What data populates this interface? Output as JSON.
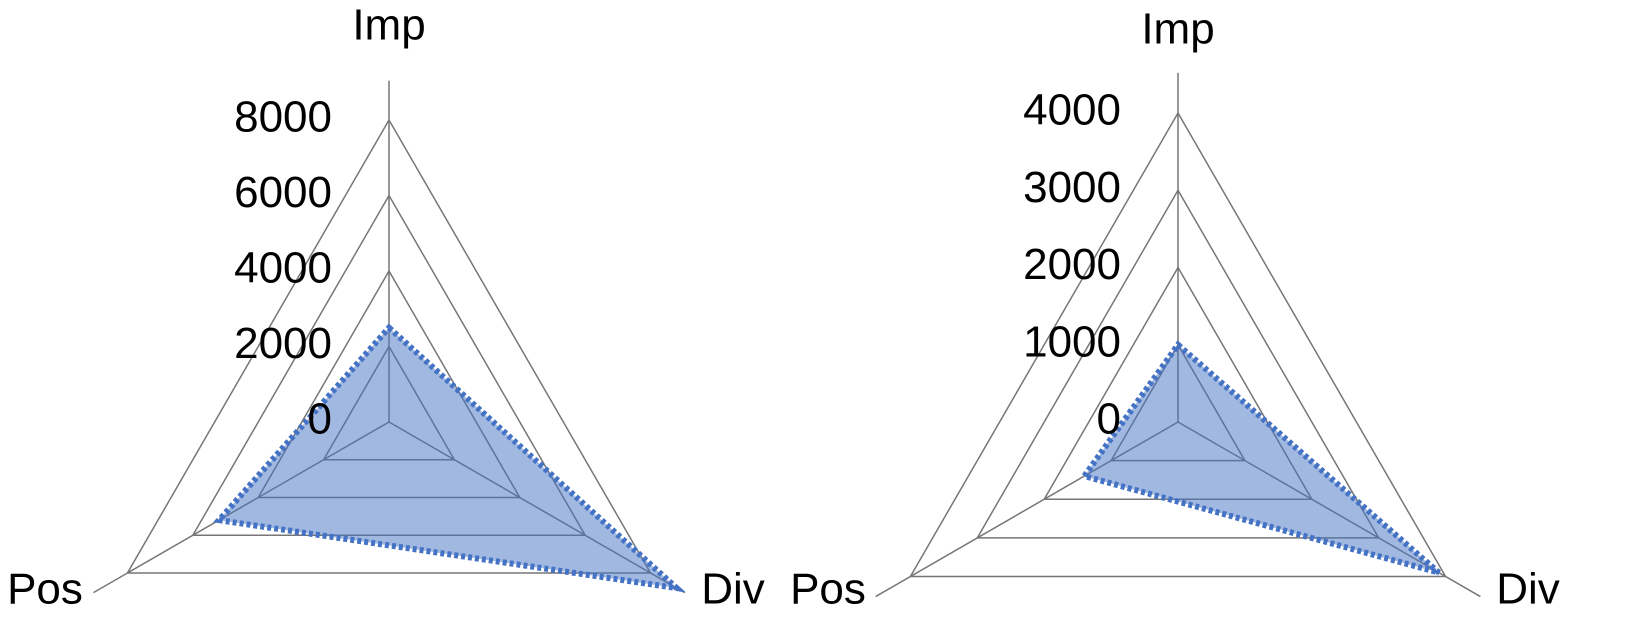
{
  "chart_data": [
    {
      "type": "radar",
      "categories": [
        "Imp",
        "Div",
        "Pos"
      ],
      "series": [
        {
          "color": "#4472c4",
          "values": [
            2500,
            8800,
            5200
          ]
        }
      ],
      "ylim": [
        0,
        8000
      ],
      "yticks": [
        0,
        2000,
        4000,
        6000,
        8000
      ]
    },
    {
      "type": "radar",
      "categories": [
        "Imp",
        "Div",
        "Pos"
      ],
      "series": [
        {
          "color": "#4472c4",
          "values": [
            1000,
            3900,
            1400
          ]
        }
      ],
      "ylim": [
        0,
        4000
      ],
      "yticks": [
        0,
        1000,
        2000,
        3000,
        4000
      ]
    }
  ]
}
